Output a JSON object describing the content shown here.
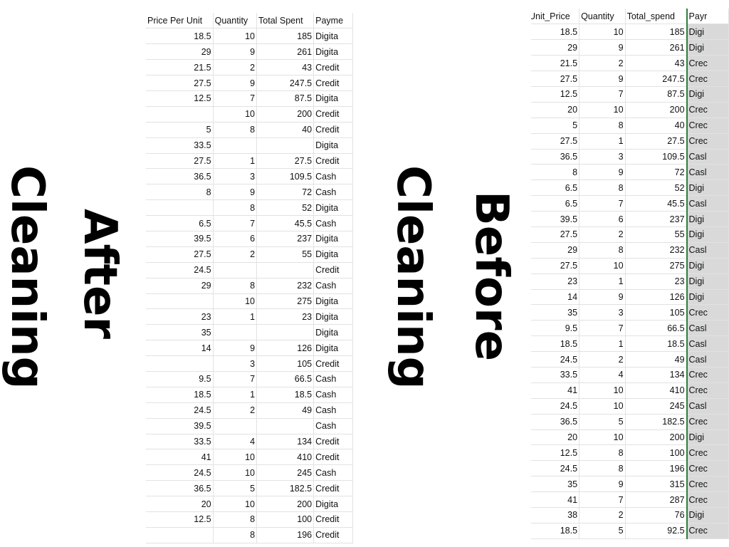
{
  "after_title": {
    "line1": "Cleaning",
    "line2": "After"
  },
  "before_title": {
    "line1": "Cleaning",
    "line2": "Before"
  },
  "after_table": {
    "headers": [
      "Price Per Unit",
      "Quantity",
      "Total Spent",
      "Payme"
    ],
    "rows": [
      [
        "18.5",
        "10",
        "185",
        "Digita"
      ],
      [
        "29",
        "9",
        "261",
        "Digita"
      ],
      [
        "21.5",
        "2",
        "43",
        "Credit"
      ],
      [
        "27.5",
        "9",
        "247.5",
        "Credit"
      ],
      [
        "12.5",
        "7",
        "87.5",
        "Digita"
      ],
      [
        "",
        "10",
        "200",
        "Credit"
      ],
      [
        "5",
        "8",
        "40",
        "Credit"
      ],
      [
        "33.5",
        "",
        "",
        "Digita"
      ],
      [
        "27.5",
        "1",
        "27.5",
        "Credit"
      ],
      [
        "36.5",
        "3",
        "109.5",
        "Cash"
      ],
      [
        "8",
        "9",
        "72",
        "Cash"
      ],
      [
        "",
        "8",
        "52",
        "Digita"
      ],
      [
        "6.5",
        "7",
        "45.5",
        "Cash"
      ],
      [
        "39.5",
        "6",
        "237",
        "Digita"
      ],
      [
        "27.5",
        "2",
        "55",
        "Digita"
      ],
      [
        "24.5",
        "",
        "",
        "Credit"
      ],
      [
        "29",
        "8",
        "232",
        "Cash"
      ],
      [
        "",
        "10",
        "275",
        "Digita"
      ],
      [
        "23",
        "1",
        "23",
        "Digita"
      ],
      [
        "35",
        "",
        "",
        "Digita"
      ],
      [
        "14",
        "9",
        "126",
        "Digita"
      ],
      [
        "",
        "3",
        "105",
        "Credit"
      ],
      [
        "9.5",
        "7",
        "66.5",
        "Cash"
      ],
      [
        "18.5",
        "1",
        "18.5",
        "Cash"
      ],
      [
        "24.5",
        "2",
        "49",
        "Cash"
      ],
      [
        "39.5",
        "",
        "",
        "Cash"
      ],
      [
        "33.5",
        "4",
        "134",
        "Credit"
      ],
      [
        "41",
        "10",
        "410",
        "Credit"
      ],
      [
        "24.5",
        "10",
        "245",
        "Cash"
      ],
      [
        "36.5",
        "5",
        "182.5",
        "Credit"
      ],
      [
        "20",
        "10",
        "200",
        "Digita"
      ],
      [
        "12.5",
        "8",
        "100",
        "Credit"
      ],
      [
        "",
        "8",
        "196",
        "Credit"
      ]
    ]
  },
  "before_table": {
    "headers": [
      "Unit_Price",
      "Quantity",
      "Total_spend",
      "Payr"
    ],
    "rows": [
      [
        "18.5",
        "10",
        "185",
        "Digi"
      ],
      [
        "29",
        "9",
        "261",
        "Digi"
      ],
      [
        "21.5",
        "2",
        "43",
        "Crec"
      ],
      [
        "27.5",
        "9",
        "247.5",
        "Crec"
      ],
      [
        "12.5",
        "7",
        "87.5",
        "Digi"
      ],
      [
        "20",
        "10",
        "200",
        "Crec"
      ],
      [
        "5",
        "8",
        "40",
        "Crec"
      ],
      [
        "27.5",
        "1",
        "27.5",
        "Crec"
      ],
      [
        "36.5",
        "3",
        "109.5",
        "Casl"
      ],
      [
        "8",
        "9",
        "72",
        "Casl"
      ],
      [
        "6.5",
        "8",
        "52",
        "Digi"
      ],
      [
        "6.5",
        "7",
        "45.5",
        "Casl"
      ],
      [
        "39.5",
        "6",
        "237",
        "Digi"
      ],
      [
        "27.5",
        "2",
        "55",
        "Digi"
      ],
      [
        "29",
        "8",
        "232",
        "Casl"
      ],
      [
        "27.5",
        "10",
        "275",
        "Digi"
      ],
      [
        "23",
        "1",
        "23",
        "Digi"
      ],
      [
        "14",
        "9",
        "126",
        "Digi"
      ],
      [
        "35",
        "3",
        "105",
        "Crec"
      ],
      [
        "9.5",
        "7",
        "66.5",
        "Casl"
      ],
      [
        "18.5",
        "1",
        "18.5",
        "Casl"
      ],
      [
        "24.5",
        "2",
        "49",
        "Casl"
      ],
      [
        "33.5",
        "4",
        "134",
        "Crec"
      ],
      [
        "41",
        "10",
        "410",
        "Crec"
      ],
      [
        "24.5",
        "10",
        "245",
        "Casl"
      ],
      [
        "36.5",
        "5",
        "182.5",
        "Crec"
      ],
      [
        "20",
        "10",
        "200",
        "Digi"
      ],
      [
        "12.5",
        "8",
        "100",
        "Crec"
      ],
      [
        "24.5",
        "8",
        "196",
        "Crec"
      ],
      [
        "35",
        "9",
        "315",
        "Crec"
      ],
      [
        "41",
        "7",
        "287",
        "Crec"
      ],
      [
        "38",
        "2",
        "76",
        "Digi"
      ],
      [
        "18.5",
        "5",
        "92.5",
        "Crec"
      ]
    ]
  },
  "colors": {
    "text": "#000000",
    "grid": "#e2e2e2",
    "selected_column_fill": "#d9d9d9",
    "selection_border": "#2f7d3e"
  }
}
